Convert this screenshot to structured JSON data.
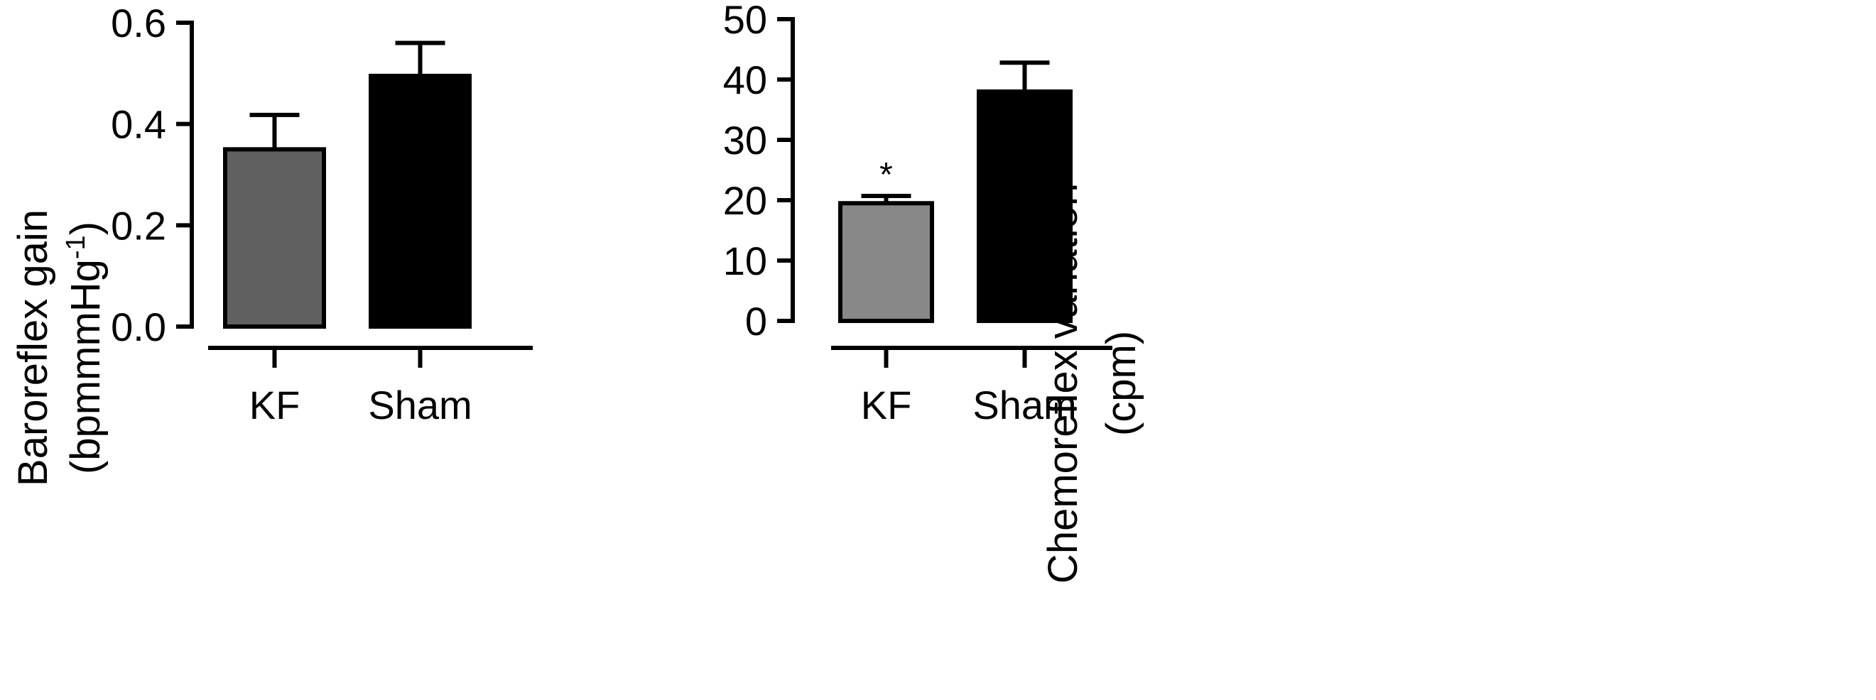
{
  "chart_data": [
    {
      "type": "bar",
      "categories": [
        "KF",
        "Sham"
      ],
      "values": [
        0.35,
        0.495
      ],
      "errors": [
        0.068,
        0.065
      ],
      "colors": [
        "#606060",
        "#000000"
      ],
      "ylabel_lines": [
        "Baroreflex gain",
        "(bpmmmHg",
        "-1",
        ")"
      ],
      "ylim": [
        0,
        0.6
      ],
      "yticks": [
        "0.0",
        "0.2",
        "0.4",
        "0.6"
      ],
      "ytick_values": [
        0,
        0.2,
        0.4,
        0.6
      ],
      "annotations": [
        "",
        ""
      ]
    },
    {
      "type": "bar",
      "categories": [
        "KF",
        "Sham"
      ],
      "values": [
        19.5,
        38
      ],
      "errors": [
        1.2,
        4.8
      ],
      "colors": [
        "#888888",
        "#000000"
      ],
      "ylabel_lines": [
        "Chemoreflex  variation",
        "(cpm)"
      ],
      "ylim": [
        0,
        50
      ],
      "yticks": [
        "0",
        "10",
        "20",
        "30",
        "40",
        "50"
      ],
      "ytick_values": [
        0,
        10,
        20,
        30,
        40,
        50
      ],
      "annotations": [
        "*",
        ""
      ]
    }
  ]
}
